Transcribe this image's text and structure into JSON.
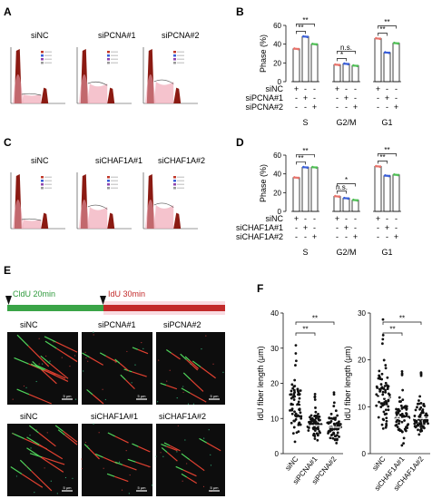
{
  "panels": {
    "A": "A",
    "B": "B",
    "C": "C",
    "D": "D",
    "E": "E",
    "F": "F"
  },
  "panelA": {
    "labels": [
      "siNC",
      "siPCNA#1",
      "siPCNA#2"
    ]
  },
  "panelC": {
    "labels": [
      "siNC",
      "siCHAF1A#1",
      "siCHAF1A#2"
    ]
  },
  "panelE": {
    "timeline": {
      "cldu": "CldU 20min",
      "idu": "IdU 30min"
    },
    "row1": [
      "siNC",
      "siPCNA#1",
      "siPCNA#2"
    ],
    "row2": [
      "siNC",
      "siCHAF1A#1",
      "siCHAF1A#2"
    ],
    "scalebar": "5 μm"
  },
  "chart_data": [
    {
      "panel": "B",
      "type": "bar",
      "ylabel": "Phase (%)",
      "ylim": [
        0,
        60
      ],
      "yticks": [
        0,
        20,
        40,
        60
      ],
      "groups": [
        "S",
        "G2/M",
        "G1"
      ],
      "row_labels": [
        "siNC",
        "siPCNA#1",
        "siPCNA#2"
      ],
      "signs": [
        [
          "+",
          "-",
          "-"
        ],
        [
          "-",
          "+",
          "-"
        ],
        [
          "-",
          "-",
          "+"
        ]
      ],
      "values": [
        [
          35,
          48,
          40
        ],
        [
          18,
          19,
          17
        ],
        [
          46,
          31,
          41
        ]
      ],
      "colors": [
        "#e8736b",
        "#3a5fd8",
        "#4fbf55"
      ],
      "sig": [
        {
          "a": [
            0,
            0
          ],
          "b": [
            0,
            1
          ],
          "text": "**"
        },
        {
          "a": [
            0,
            0
          ],
          "b": [
            0,
            2
          ],
          "text": "**"
        },
        {
          "a": [
            1,
            0
          ],
          "b": [
            1,
            1
          ],
          "text": "*"
        },
        {
          "a": [
            1,
            0
          ],
          "b": [
            1,
            2
          ],
          "text": "n.s."
        },
        {
          "a": [
            2,
            0
          ],
          "b": [
            2,
            1
          ],
          "text": "**"
        },
        {
          "a": [
            2,
            0
          ],
          "b": [
            2,
            2
          ],
          "text": "**"
        }
      ]
    },
    {
      "panel": "D",
      "type": "bar",
      "ylabel": "Phase (%)",
      "ylim": [
        0,
        60
      ],
      "yticks": [
        0,
        20,
        40,
        60
      ],
      "groups": [
        "S",
        "G2/M",
        "G1"
      ],
      "row_labels": [
        "siNC",
        "siCHAF1A#1",
        "siCHAF1A#2"
      ],
      "signs": [
        [
          "+",
          "-",
          "-"
        ],
        [
          "-",
          "+",
          "-"
        ],
        [
          "-",
          "-",
          "+"
        ]
      ],
      "values": [
        [
          36,
          47,
          47
        ],
        [
          16,
          14,
          12
        ],
        [
          48,
          38,
          39
        ]
      ],
      "colors": [
        "#e8736b",
        "#3a5fd8",
        "#4fbf55"
      ],
      "sig": [
        {
          "a": [
            0,
            0
          ],
          "b": [
            0,
            1
          ],
          "text": "**"
        },
        {
          "a": [
            0,
            0
          ],
          "b": [
            0,
            2
          ],
          "text": "**"
        },
        {
          "a": [
            1,
            0
          ],
          "b": [
            1,
            1
          ],
          "text": "n.s."
        },
        {
          "a": [
            1,
            0
          ],
          "b": [
            1,
            2
          ],
          "text": "*"
        },
        {
          "a": [
            2,
            0
          ],
          "b": [
            2,
            1
          ],
          "text": "**"
        },
        {
          "a": [
            2,
            0
          ],
          "b": [
            2,
            2
          ],
          "text": "**"
        }
      ]
    },
    {
      "panel": "F-left",
      "type": "scatter",
      "ylabel": "IdU fiber length (μm)",
      "ylim": [
        0,
        40
      ],
      "yticks": [
        0,
        10,
        20,
        30,
        40
      ],
      "categories": [
        "siNC",
        "siPCNA#1",
        "siPCNA#2"
      ],
      "means": [
        13.5,
        8.0,
        7.5
      ],
      "sig": [
        {
          "a": 0,
          "b": 1,
          "text": "**"
        },
        {
          "a": 0,
          "b": 2,
          "text": "**"
        }
      ]
    },
    {
      "panel": "F-right",
      "type": "scatter",
      "ylabel": "IdU fiber length (μm)",
      "ylim": [
        0,
        30
      ],
      "yticks": [
        0,
        10,
        20,
        30
      ],
      "categories": [
        "siNC",
        "siCHAF1A#1",
        "siCHAF1A#2"
      ],
      "means": [
        12.0,
        7.5,
        7.5
      ],
      "sig": [
        {
          "a": 0,
          "b": 1,
          "text": "**"
        },
        {
          "a": 0,
          "b": 2,
          "text": "**"
        }
      ]
    }
  ]
}
